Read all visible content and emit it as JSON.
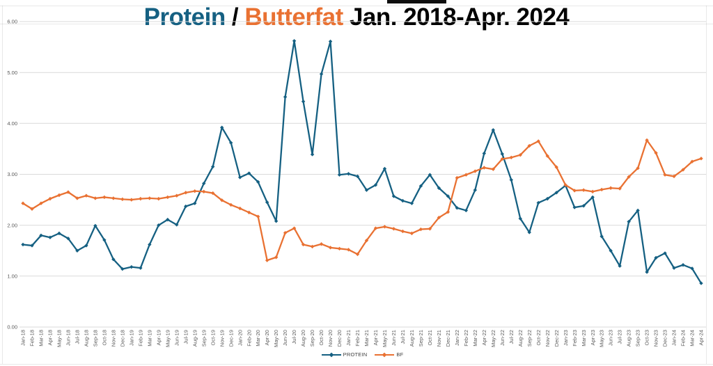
{
  "title": {
    "protein": "Protein",
    "separator": " / ",
    "butterfat": "Butterfat",
    "period": " Jan. 2018-Apr. 2024",
    "full_title": "Protein / Butterfat Jan. 2018-Apr. 2024",
    "protein_color": "#156082",
    "butterfat_color": "#E97132",
    "text_color": "#000000"
  },
  "colors": {
    "protein_series": "#156082",
    "butterfat_series": "#E97132",
    "gridline": "#D9D9D9",
    "axis_label": "#595959",
    "legend_text": "#404040",
    "background": "#FFFFFF"
  },
  "legend": {
    "items": [
      {
        "label": "PROTEIN",
        "color": "#156082"
      },
      {
        "label": "BF",
        "color": "#E97132"
      }
    ],
    "position": "bottom-center"
  },
  "chart_data": {
    "type": "line",
    "title": "Protein / Butterfat Jan. 2018-Apr. 2024",
    "xlabel": "",
    "ylabel": "",
    "ylim": [
      0,
      6
    ],
    "ytick_step": 1,
    "y_tick_labels": [
      "0.00",
      "1.00",
      "2.00",
      "3.00",
      "4.00",
      "5.00",
      "6.00"
    ],
    "grid": true,
    "marker": "diamond",
    "legend_position": "bottom",
    "categories": [
      "Jan-18",
      "Feb-18",
      "Mar-18",
      "Apr-18",
      "May-18",
      "Jun-18",
      "Jul-18",
      "Aug-18",
      "Sep-18",
      "Oct-18",
      "Nov-18",
      "Dec-18",
      "Jan-19",
      "Feb-19",
      "Mar-19",
      "Apr-19",
      "May-19",
      "Jun-19",
      "Jul-19",
      "Aug-19",
      "Sep-19",
      "Oct-19",
      "Nov-19",
      "Dec-19",
      "Jan-20",
      "Feb-20",
      "Mar-20",
      "Apr-20",
      "May-20",
      "Jun-20",
      "Jul-20",
      "Aug-20",
      "Sep-20",
      "Oct-20",
      "Nov-20",
      "Dec-20",
      "Jan-21",
      "Feb-21",
      "Mar-21",
      "Apr-21",
      "May-21",
      "Jun-21",
      "Jul-21",
      "Aug-21",
      "Sep-21",
      "Oct-21",
      "Nov-21",
      "Dec-21",
      "Jan-22",
      "Feb-22",
      "Mar-22",
      "Apr-22",
      "May-22",
      "Jun-22",
      "Jul-22",
      "Aug-22",
      "Sep-22",
      "Oct-22",
      "Nov-22",
      "Dec-22",
      "Jan-23",
      "Feb-23",
      "Mar-23",
      "Apr-23",
      "May-23",
      "Jun-23",
      "Jul-23",
      "Aug-23",
      "Sep-23",
      "Oct-23",
      "Nov-23",
      "Dec-23",
      "Jan-24",
      "Feb-24",
      "Mar-24",
      "Apr-24"
    ],
    "series": [
      {
        "name": "PROTEIN",
        "color": "#156082",
        "values": [
          1.62,
          1.6,
          1.8,
          1.76,
          1.84,
          1.74,
          1.5,
          1.6,
          1.99,
          1.71,
          1.33,
          1.14,
          1.18,
          1.16,
          1.62,
          2.0,
          2.11,
          2.01,
          2.37,
          2.43,
          2.82,
          3.15,
          3.92,
          3.62,
          2.94,
          3.02,
          2.85,
          2.45,
          2.08,
          4.52,
          5.62,
          4.43,
          3.39,
          4.97,
          5.61,
          2.99,
          3.01,
          2.96,
          2.69,
          2.79,
          3.11,
          2.57,
          2.48,
          2.43,
          2.77,
          2.99,
          2.73,
          2.57,
          2.34,
          2.29,
          2.69,
          3.41,
          3.87,
          3.4,
          2.89,
          2.13,
          1.86,
          2.44,
          2.52,
          2.64,
          2.78,
          2.35,
          2.38,
          2.55,
          1.78,
          1.5,
          1.2,
          2.07,
          2.29,
          1.08,
          1.36,
          1.45,
          1.16,
          1.22,
          1.15,
          0.86
        ]
      },
      {
        "name": "BF",
        "color": "#E97132",
        "values": [
          2.43,
          2.32,
          2.43,
          2.52,
          2.59,
          2.65,
          2.53,
          2.58,
          2.53,
          2.55,
          2.53,
          2.51,
          2.5,
          2.52,
          2.53,
          2.52,
          2.55,
          2.58,
          2.64,
          2.67,
          2.66,
          2.63,
          2.49,
          2.4,
          2.33,
          2.25,
          2.17,
          1.31,
          1.37,
          1.85,
          1.94,
          1.62,
          1.58,
          1.63,
          1.56,
          1.54,
          1.52,
          1.43,
          1.7,
          1.94,
          1.97,
          1.93,
          1.88,
          1.84,
          1.92,
          1.93,
          2.15,
          2.26,
          2.93,
          2.99,
          3.06,
          3.13,
          3.1,
          3.3,
          3.33,
          3.38,
          3.56,
          3.65,
          3.36,
          3.14,
          2.79,
          2.68,
          2.69,
          2.66,
          2.7,
          2.73,
          2.72,
          2.95,
          3.12,
          3.67,
          3.42,
          2.99,
          2.96,
          3.09,
          3.25,
          3.31
        ]
      }
    ]
  }
}
